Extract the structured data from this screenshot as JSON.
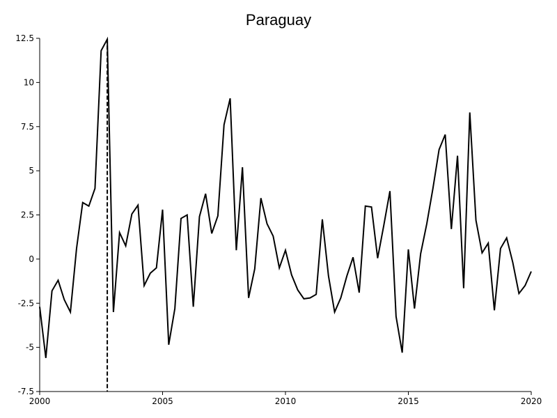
{
  "chart_data": {
    "type": "line",
    "title": "Paraguay",
    "xlabel": "",
    "ylabel": "",
    "xlim": [
      2000,
      2020
    ],
    "ylim": [
      -7.5,
      12.5
    ],
    "x_ticks": [
      2000,
      2005,
      2010,
      2015,
      2020
    ],
    "x_tick_labels": [
      "2000",
      "2005",
      "2010",
      "2015",
      "2020"
    ],
    "y_ticks": [
      -7.5,
      -5,
      -2.5,
      0,
      2.5,
      5,
      7.5,
      10,
      12.5
    ],
    "y_tick_labels": [
      "-7.5",
      "-5",
      "-2.5",
      "0",
      "2.5",
      "5",
      "7.5",
      "10",
      "12.5"
    ],
    "grid": false,
    "legend": "none",
    "line_color": "#000000",
    "vertical_marker": {
      "x": 2002.75,
      "style": "dashed"
    },
    "series": [
      {
        "values": [
          [
            2000.0,
            -2.7
          ],
          [
            2000.25,
            -5.6
          ],
          [
            2000.5,
            -1.8
          ],
          [
            2000.75,
            -1.2
          ],
          [
            2001.0,
            -2.3
          ],
          [
            2001.25,
            -3.0
          ],
          [
            2001.5,
            0.6
          ],
          [
            2001.75,
            3.2
          ],
          [
            2002.0,
            3.0
          ],
          [
            2002.25,
            4.0
          ],
          [
            2002.5,
            11.8
          ],
          [
            2002.75,
            12.45
          ],
          [
            2003.0,
            -3.0
          ],
          [
            2003.25,
            1.5
          ],
          [
            2003.5,
            0.75
          ],
          [
            2003.75,
            2.55
          ],
          [
            2004.0,
            3.05
          ],
          [
            2004.25,
            -1.5
          ],
          [
            2004.5,
            -0.8
          ],
          [
            2004.75,
            -0.5
          ],
          [
            2005.0,
            2.8
          ],
          [
            2005.25,
            -4.85
          ],
          [
            2005.5,
            -2.8
          ],
          [
            2005.75,
            2.3
          ],
          [
            2006.0,
            2.5
          ],
          [
            2006.25,
            -2.7
          ],
          [
            2006.5,
            2.4
          ],
          [
            2006.75,
            3.7
          ],
          [
            2007.0,
            1.45
          ],
          [
            2007.25,
            2.45
          ],
          [
            2007.5,
            7.6
          ],
          [
            2007.75,
            9.1
          ],
          [
            2008.0,
            0.5
          ],
          [
            2008.25,
            5.2
          ],
          [
            2008.5,
            -2.2
          ],
          [
            2008.75,
            -0.55
          ],
          [
            2009.0,
            3.45
          ],
          [
            2009.25,
            2.0
          ],
          [
            2009.5,
            1.3
          ],
          [
            2009.75,
            -0.5
          ],
          [
            2010.0,
            0.5
          ],
          [
            2010.25,
            -0.9
          ],
          [
            2010.5,
            -1.75
          ],
          [
            2010.75,
            -2.25
          ],
          [
            2011.0,
            -2.2
          ],
          [
            2011.25,
            -2.0
          ],
          [
            2011.5,
            2.25
          ],
          [
            2011.75,
            -0.95
          ],
          [
            2012.0,
            -3.0
          ],
          [
            2012.25,
            -2.2
          ],
          [
            2012.5,
            -0.95
          ],
          [
            2012.75,
            0.1
          ],
          [
            2013.0,
            -1.9
          ],
          [
            2013.25,
            3.0
          ],
          [
            2013.5,
            2.95
          ],
          [
            2013.75,
            0.05
          ],
          [
            2014.0,
            1.9
          ],
          [
            2014.25,
            3.85
          ],
          [
            2014.5,
            -3.25
          ],
          [
            2014.75,
            -5.3
          ],
          [
            2015.0,
            0.55
          ],
          [
            2015.25,
            -2.8
          ],
          [
            2015.5,
            0.3
          ],
          [
            2015.75,
            2.0
          ],
          [
            2016.0,
            4.0
          ],
          [
            2016.25,
            6.2
          ],
          [
            2016.5,
            7.05
          ],
          [
            2016.75,
            1.7
          ],
          [
            2017.0,
            5.85
          ],
          [
            2017.25,
            -1.65
          ],
          [
            2017.5,
            8.3
          ],
          [
            2017.75,
            2.2
          ],
          [
            2018.0,
            0.35
          ],
          [
            2018.25,
            0.9
          ],
          [
            2018.5,
            -2.9
          ],
          [
            2018.75,
            0.6
          ],
          [
            2019.0,
            1.2
          ],
          [
            2019.25,
            -0.2
          ],
          [
            2019.5,
            -1.95
          ],
          [
            2019.75,
            -1.5
          ],
          [
            2020.0,
            -0.7
          ]
        ]
      }
    ]
  }
}
